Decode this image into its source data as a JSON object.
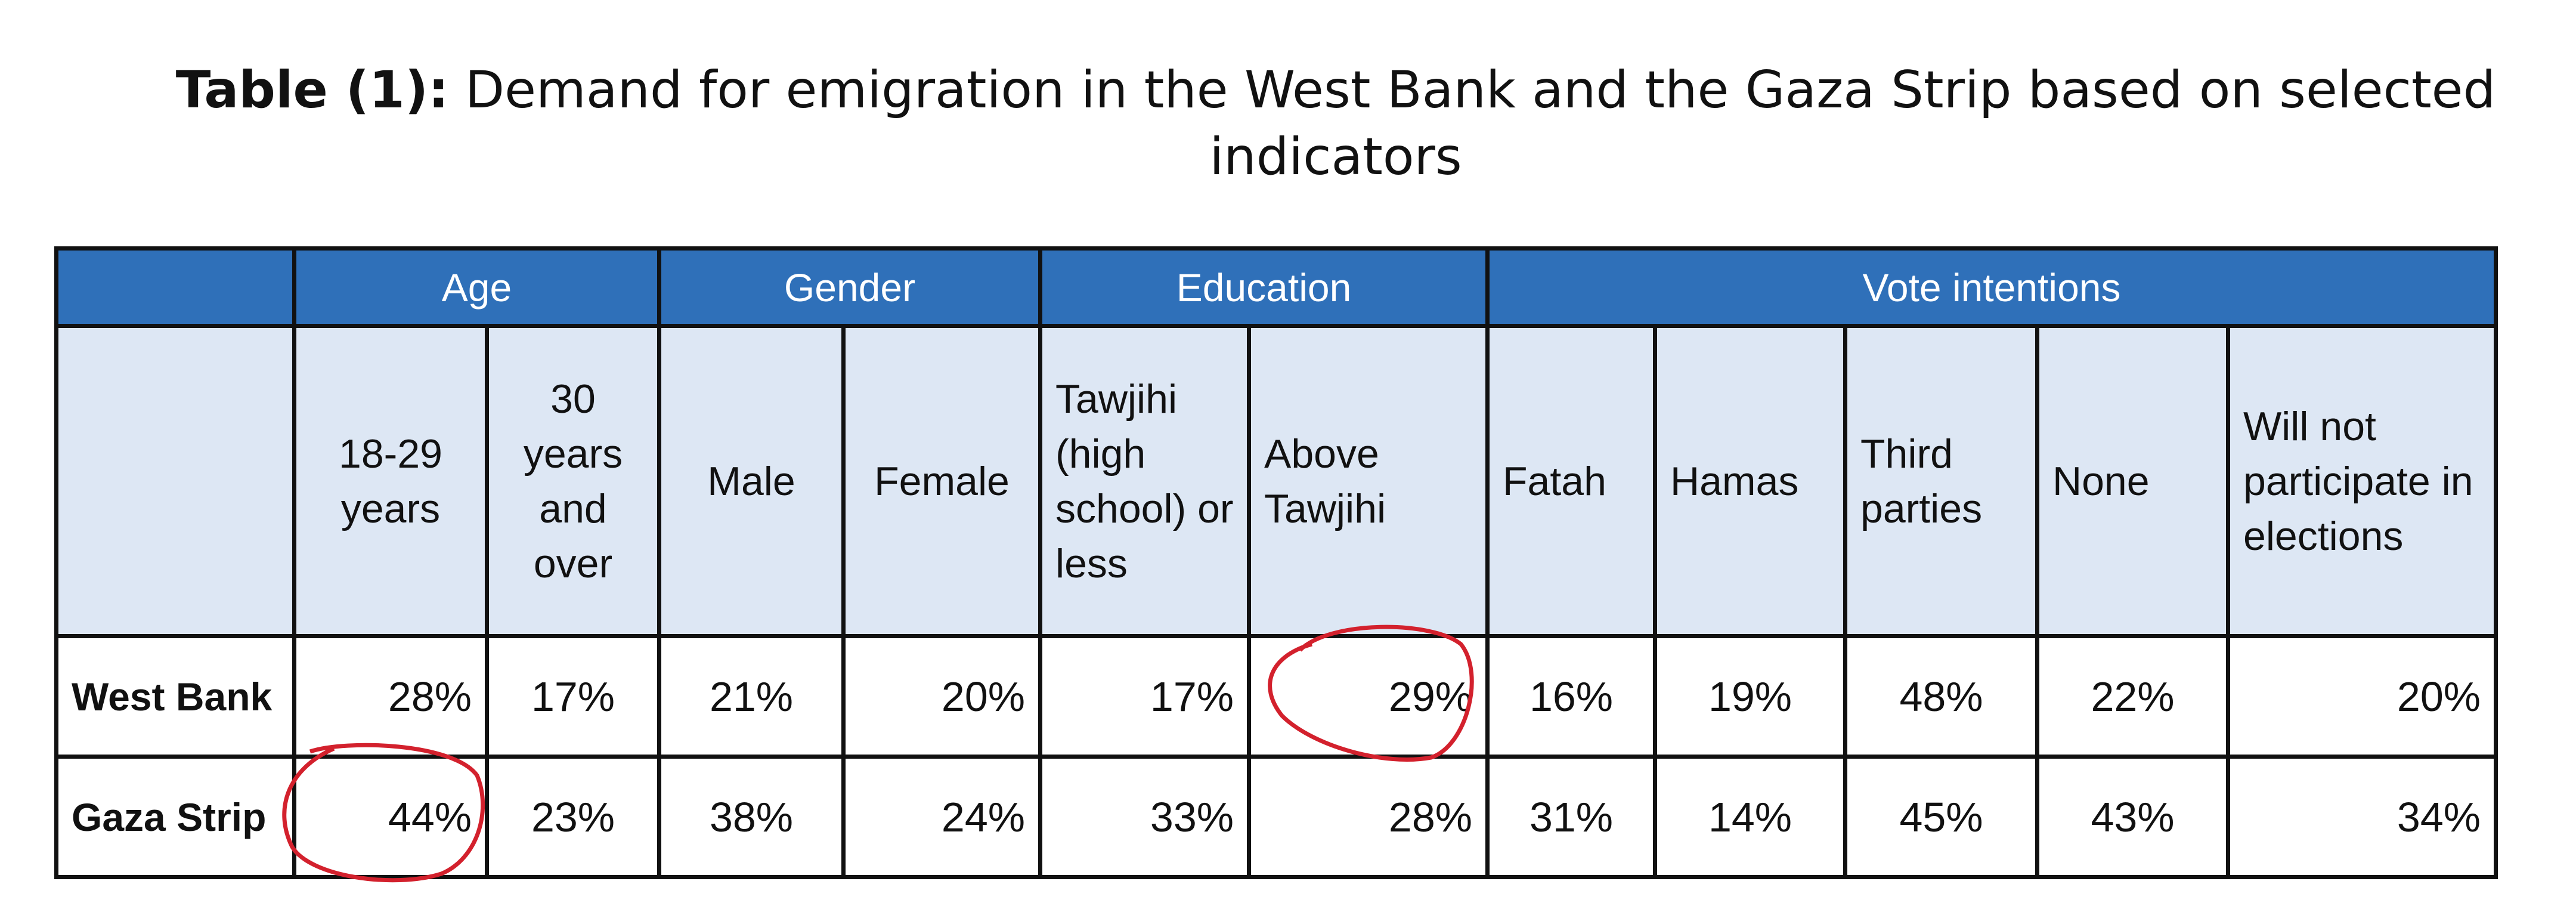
{
  "header": {
    "title_label": "Table (1):",
    "title": "Demand for emigration in the West Bank and the Gaza Strip based on selected indicators"
  },
  "table": {
    "groups": [
      {
        "label": "Age",
        "columns": [
          "18-29 years",
          "30 years and over"
        ]
      },
      {
        "label": "Gender",
        "columns": [
          "Male",
          "Female"
        ]
      },
      {
        "label": "Education",
        "columns": [
          "Tawjihi (high school) or less",
          "Above Tawjihi"
        ]
      },
      {
        "label": "Vote intentions",
        "columns": [
          "Fatah",
          "Hamas",
          "Third parties",
          "None",
          "Will not participate in elections"
        ]
      }
    ],
    "rows": [
      {
        "label": "West Bank",
        "values": [
          "28%",
          "17%",
          "21%",
          "20%",
          "17%",
          "29%",
          "16%",
          "19%",
          "48%",
          "22%",
          "20%"
        ]
      },
      {
        "label": "Gaza Strip",
        "values": [
          "44%",
          "23%",
          "38%",
          "24%",
          "33%",
          "28%",
          "31%",
          "14%",
          "45%",
          "43%",
          "34%"
        ]
      }
    ]
  }
}
